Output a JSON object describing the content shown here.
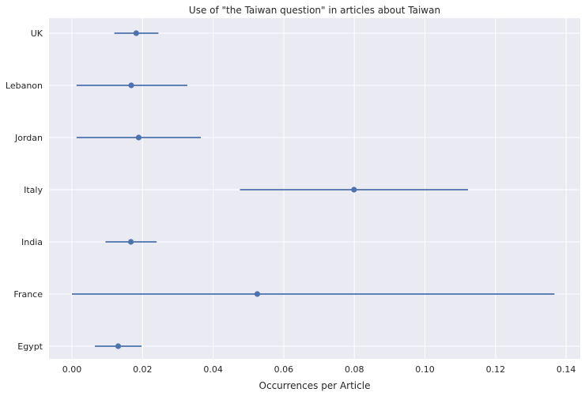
{
  "chart_data": {
    "type": "errorbar",
    "title": "Use of \"the Taiwan question\" in articles about Taiwan",
    "xlabel": "Occurrences per Article",
    "ylabel": "",
    "xlim": [
      -0.0065,
      0.144
    ],
    "x_ticks": [
      "0.00",
      "0.02",
      "0.04",
      "0.06",
      "0.08",
      "0.10",
      "0.12",
      "0.14"
    ],
    "x_tick_values": [
      0,
      0.02,
      0.04,
      0.06,
      0.08,
      0.1,
      0.12,
      0.14
    ],
    "grid": true,
    "categories": [
      "UK",
      "Lebanon",
      "Jordan",
      "Italy",
      "India",
      "France",
      "Egypt"
    ],
    "points": [
      {
        "label": "UK",
        "value": 0.0182,
        "low": 0.012,
        "high": 0.0245
      },
      {
        "label": "Lebanon",
        "value": 0.0168,
        "low": 0.0013,
        "high": 0.0327
      },
      {
        "label": "Jordan",
        "value": 0.0189,
        "low": 0.0013,
        "high": 0.0365
      },
      {
        "label": "Italy",
        "value": 0.0799,
        "low": 0.0476,
        "high": 0.1122
      },
      {
        "label": "India",
        "value": 0.0167,
        "low": 0.0095,
        "high": 0.024
      },
      {
        "label": "France",
        "value": 0.0525,
        "low": 0.0,
        "high": 0.1367
      },
      {
        "label": "Egypt",
        "value": 0.0131,
        "low": 0.0065,
        "high": 0.0197
      }
    ],
    "colors": {
      "series": "#4c72b0",
      "background": "#eaeaf2",
      "grid": "#ffffff"
    }
  }
}
